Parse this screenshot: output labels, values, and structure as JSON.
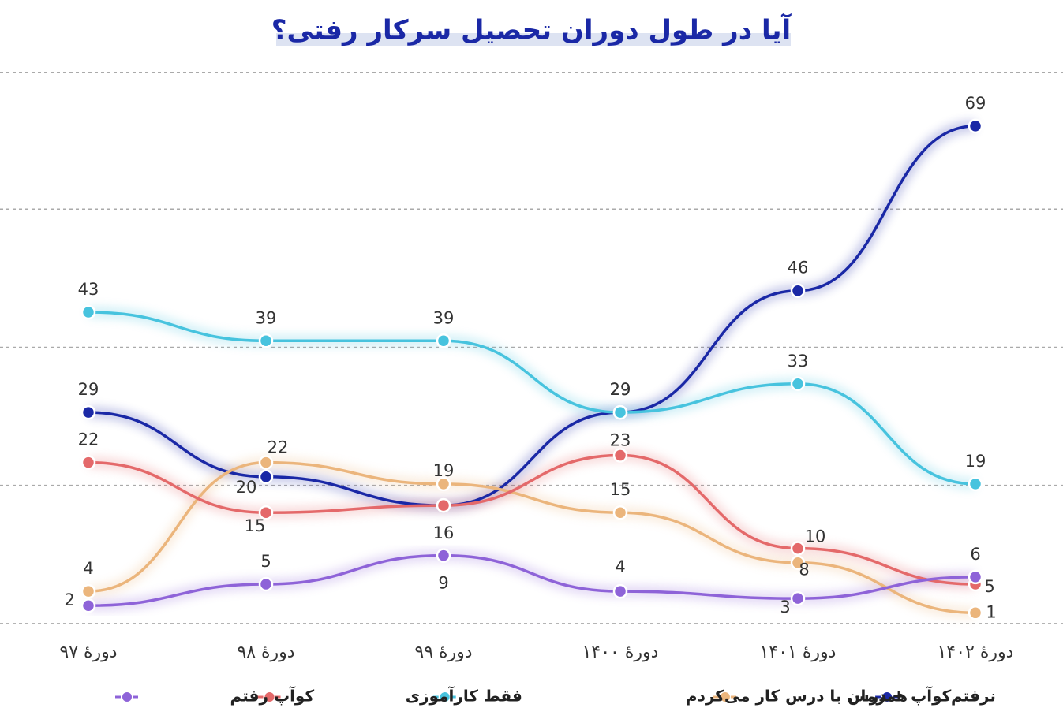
{
  "chart_data": {
    "type": "line",
    "title": "آیا در طول دوران تحصیل سرکار رفتی؟",
    "categories": [
      "دورهٔ ۹۷",
      "دورهٔ ۹۸",
      "دورهٔ ۹۹",
      "دورهٔ ۱۴۰۰",
      "دورهٔ ۱۴۰۱",
      "دورهٔ ۱۴۰۲"
    ],
    "series": [
      {
        "name": "نرفتم",
        "color": "#1a28a6",
        "values": [
          29,
          20,
          16,
          29,
          46,
          69
        ]
      },
      {
        "name": "کوآپ + درس",
        "color": "#ebb57c",
        "values": [
          4,
          22,
          19,
          15,
          8,
          1
        ]
      },
      {
        "name": "همزمان با درس کار می‌کردم",
        "color": "#47c3de",
        "values": [
          43,
          39,
          39,
          29,
          33,
          19
        ]
      },
      {
        "name": "فقط کارآموزی",
        "color": "#e4696a",
        "values": [
          22,
          15,
          16,
          23,
          10,
          5
        ]
      },
      {
        "name": "کوآپ رفتم",
        "color": "#8e63d8",
        "values": [
          2,
          5,
          9,
          4,
          3,
          6
        ]
      }
    ],
    "ylim": [
      -1.5,
      77.8
    ],
    "yticks": [
      -0.5,
      18.8,
      38.1,
      57.4,
      76.5
    ],
    "grid": true
  }
}
